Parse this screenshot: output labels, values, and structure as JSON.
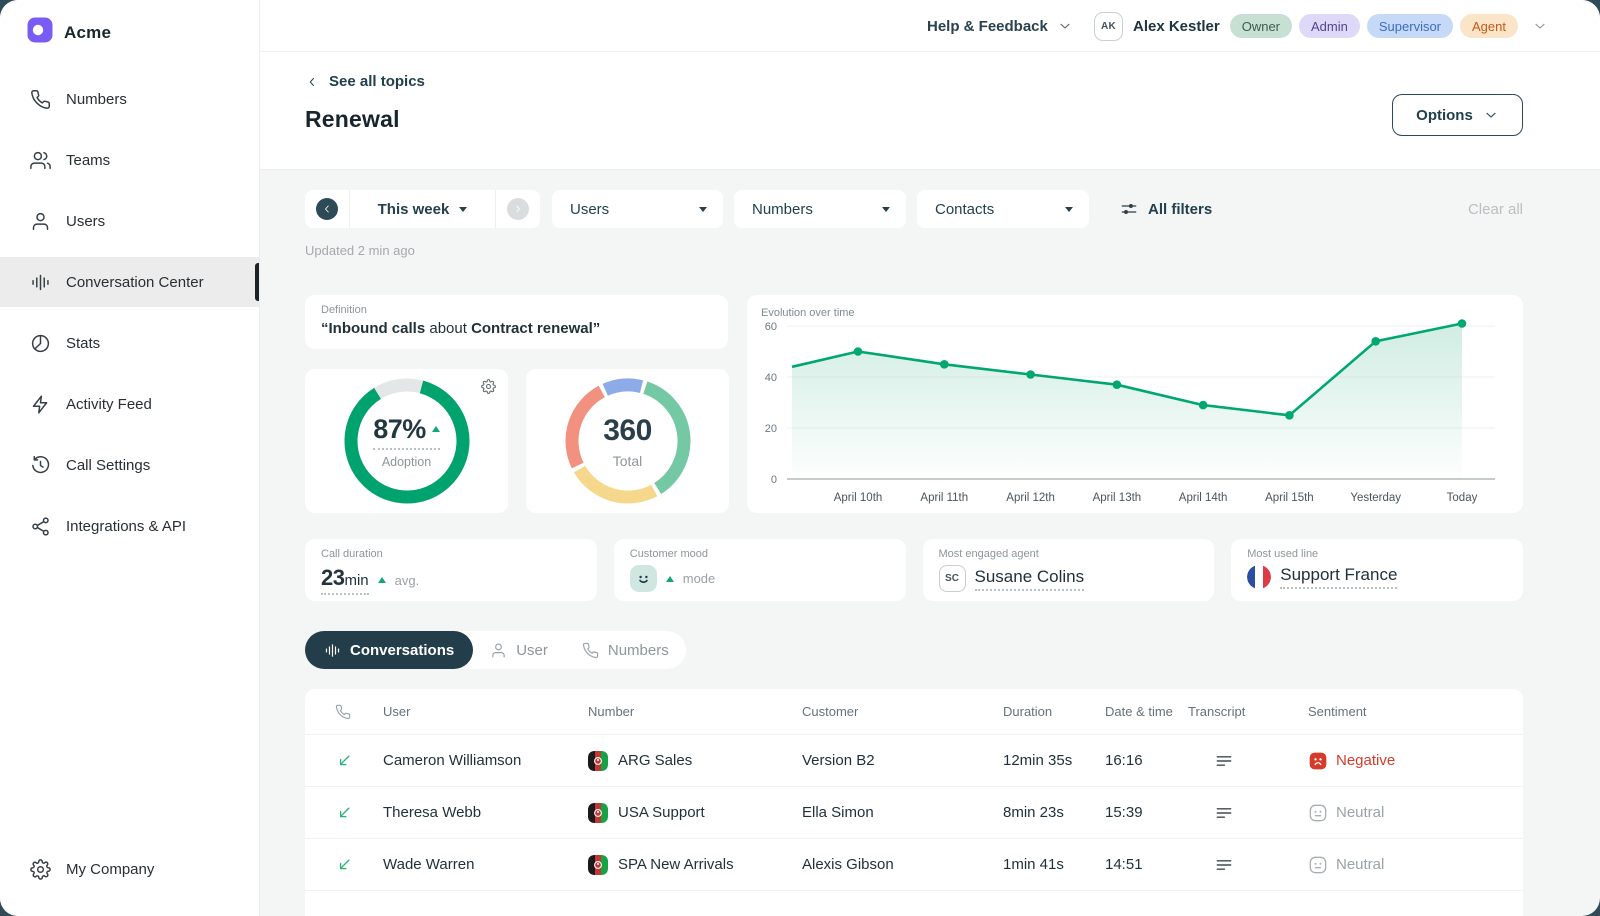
{
  "brand": {
    "name": "Acme"
  },
  "sidebar": {
    "items": [
      {
        "label": "Numbers",
        "icon": "phone",
        "active": false
      },
      {
        "label": "Teams",
        "icon": "teams",
        "active": false
      },
      {
        "label": "Users",
        "icon": "user",
        "active": false
      },
      {
        "label": "Conversation Center",
        "icon": "waveform",
        "active": true
      },
      {
        "label": "Stats",
        "icon": "stats",
        "active": false
      },
      {
        "label": "Activity Feed",
        "icon": "activity",
        "active": false
      },
      {
        "label": "Call Settings",
        "icon": "history",
        "active": false
      },
      {
        "label": "Integrations & API",
        "icon": "integrations",
        "active": false
      }
    ],
    "footer_item": {
      "label": "My Company",
      "icon": "gear"
    }
  },
  "topbar": {
    "help_label": "Help & Feedback",
    "user": {
      "initials": "AK",
      "name": "Alex Kestler"
    },
    "roles": [
      {
        "label": "Owner",
        "bg": "#c7e0d3",
        "color": "#39604f"
      },
      {
        "label": "Admin",
        "bg": "#ded8f9",
        "color": "#55448c"
      },
      {
        "label": "Supervisor",
        "bg": "#c6daf8",
        "color": "#3c6cc1"
      },
      {
        "label": "Agent",
        "bg": "#fbe5c8",
        "color": "#c3591d"
      }
    ]
  },
  "page": {
    "back_label": "See all topics",
    "title": "Renewal",
    "options_label": "Options",
    "updated": "Updated 2 min ago"
  },
  "filters": {
    "period": "This week",
    "dropdowns": [
      "Users",
      "Numbers",
      "Contacts"
    ],
    "all_filters_label": "All filters",
    "clear_label": "Clear all"
  },
  "definition": {
    "label": "Definition",
    "bold1": "“Inbound calls",
    "mid": " about ",
    "bold2": "Contract renewal”"
  },
  "adoption": {
    "value": "87%",
    "label": "Adoption",
    "percent": 87,
    "trend": "up",
    "color": "#00a26e",
    "rest_color": "#e4e7e7"
  },
  "total": {
    "value": "360",
    "label": "Total",
    "segments": [
      {
        "name": "blue",
        "color": "#8cabe8",
        "from": -24,
        "to": 14
      },
      {
        "name": "green",
        "color": "#74c8a3",
        "from": 18,
        "to": 148
      },
      {
        "name": "yellow",
        "color": "#f6d88c",
        "from": 152,
        "to": 240
      },
      {
        "name": "salmon",
        "color": "#f2917f",
        "from": 244,
        "to": 332
      }
    ]
  },
  "chart_data": {
    "type": "line",
    "title": "Evolution over time",
    "x": [
      "",
      "April 10th",
      "April 11th",
      "April 12th",
      "April 13th",
      "April 14th",
      "April 15th",
      "Yesterday",
      "Today"
    ],
    "values": [
      44,
      50,
      45,
      41,
      37,
      29,
      25,
      54,
      61
    ],
    "ylim": [
      0,
      60
    ],
    "yticks": [
      0,
      20,
      40,
      60
    ],
    "line_color": "#00a870",
    "area": true,
    "grid": true,
    "legend": false
  },
  "stats": [
    {
      "label": "Call duration",
      "type": "duration",
      "value_big": "23",
      "value_small": "min",
      "suffix": "avg.",
      "trend": "up"
    },
    {
      "label": "Customer mood",
      "type": "mood",
      "suffix": "mode",
      "trend": "up"
    },
    {
      "label": "Most engaged agent",
      "type": "agent",
      "value": "Susane Colins",
      "initials": "SC"
    },
    {
      "label": "Most used line",
      "type": "line",
      "value": "Support France",
      "flag": "france"
    }
  ],
  "tabs": [
    {
      "label": "Conversations",
      "icon": "waveform",
      "active": true
    },
    {
      "label": "User",
      "icon": "user",
      "active": false
    },
    {
      "label": "Numbers",
      "icon": "phone",
      "active": false
    }
  ],
  "table": {
    "columns": [
      "",
      "User",
      "Number",
      "Customer",
      "Duration",
      "Date & time",
      "Transcript",
      "Sentiment"
    ],
    "rows": [
      {
        "direction": "inbound",
        "user": "Cameron Williamson",
        "number": "ARG Sales",
        "customer": "Version B2",
        "duration": "12min 35s",
        "time": "16:16",
        "sentiment": "Negative",
        "sentiment_type": "negative"
      },
      {
        "direction": "inbound",
        "user": "Theresa Webb",
        "number": "USA Support",
        "customer": "Ella Simon",
        "duration": "8min 23s",
        "time": "15:39",
        "sentiment": "Neutral",
        "sentiment_type": "neutral"
      },
      {
        "direction": "inbound",
        "user": "Wade Warren",
        "number": "SPA New Arrivals",
        "customer": "Alexis Gibson",
        "duration": "1min 41s",
        "time": "14:51",
        "sentiment": "Neutral",
        "sentiment_type": "neutral"
      }
    ]
  },
  "colors": {
    "accent_green": "#00a870",
    "negative": "#d63b2a",
    "neutral": "#99a3a7",
    "brand_purple": "#7b5bf5"
  }
}
